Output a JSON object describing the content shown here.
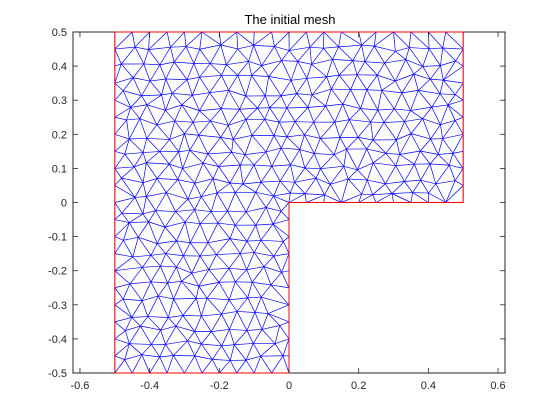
{
  "title": "The initial mesh",
  "chart_data": {
    "type": "mesh",
    "title": "The initial mesh",
    "xlim": [
      -0.62,
      0.62
    ],
    "ylim": [
      -0.5,
      0.5
    ],
    "x_ticks": [
      -0.6,
      -0.4,
      -0.2,
      0,
      0.2,
      0.4,
      0.6
    ],
    "x_tick_labels": [
      "-0.6",
      "-0.4",
      "-0.2",
      "0",
      "0.2",
      "0.4",
      "0.6"
    ],
    "y_ticks": [
      -0.5,
      -0.4,
      -0.3,
      -0.2,
      -0.1,
      0,
      0.1,
      0.2,
      0.3,
      0.4,
      0.5
    ],
    "y_tick_labels": [
      "-0.5",
      "-0.4",
      "-0.3",
      "-0.2",
      "-0.1",
      "0",
      "0.1",
      "0.2",
      "0.3",
      "0.4",
      "0.5"
    ],
    "boundary": [
      [
        -0.5,
        -0.5
      ],
      [
        0,
        -0.5
      ],
      [
        0,
        0
      ],
      [
        0.5,
        0
      ],
      [
        0.5,
        0.5
      ],
      [
        -0.5,
        0.5
      ],
      [
        -0.5,
        -0.5
      ]
    ],
    "element_spacing": 0.05,
    "colors": {
      "mesh": "#0000ff",
      "boundary": "#ff0000",
      "axes": "#262626",
      "background": "#ffffff"
    },
    "grid": false,
    "box": true
  }
}
